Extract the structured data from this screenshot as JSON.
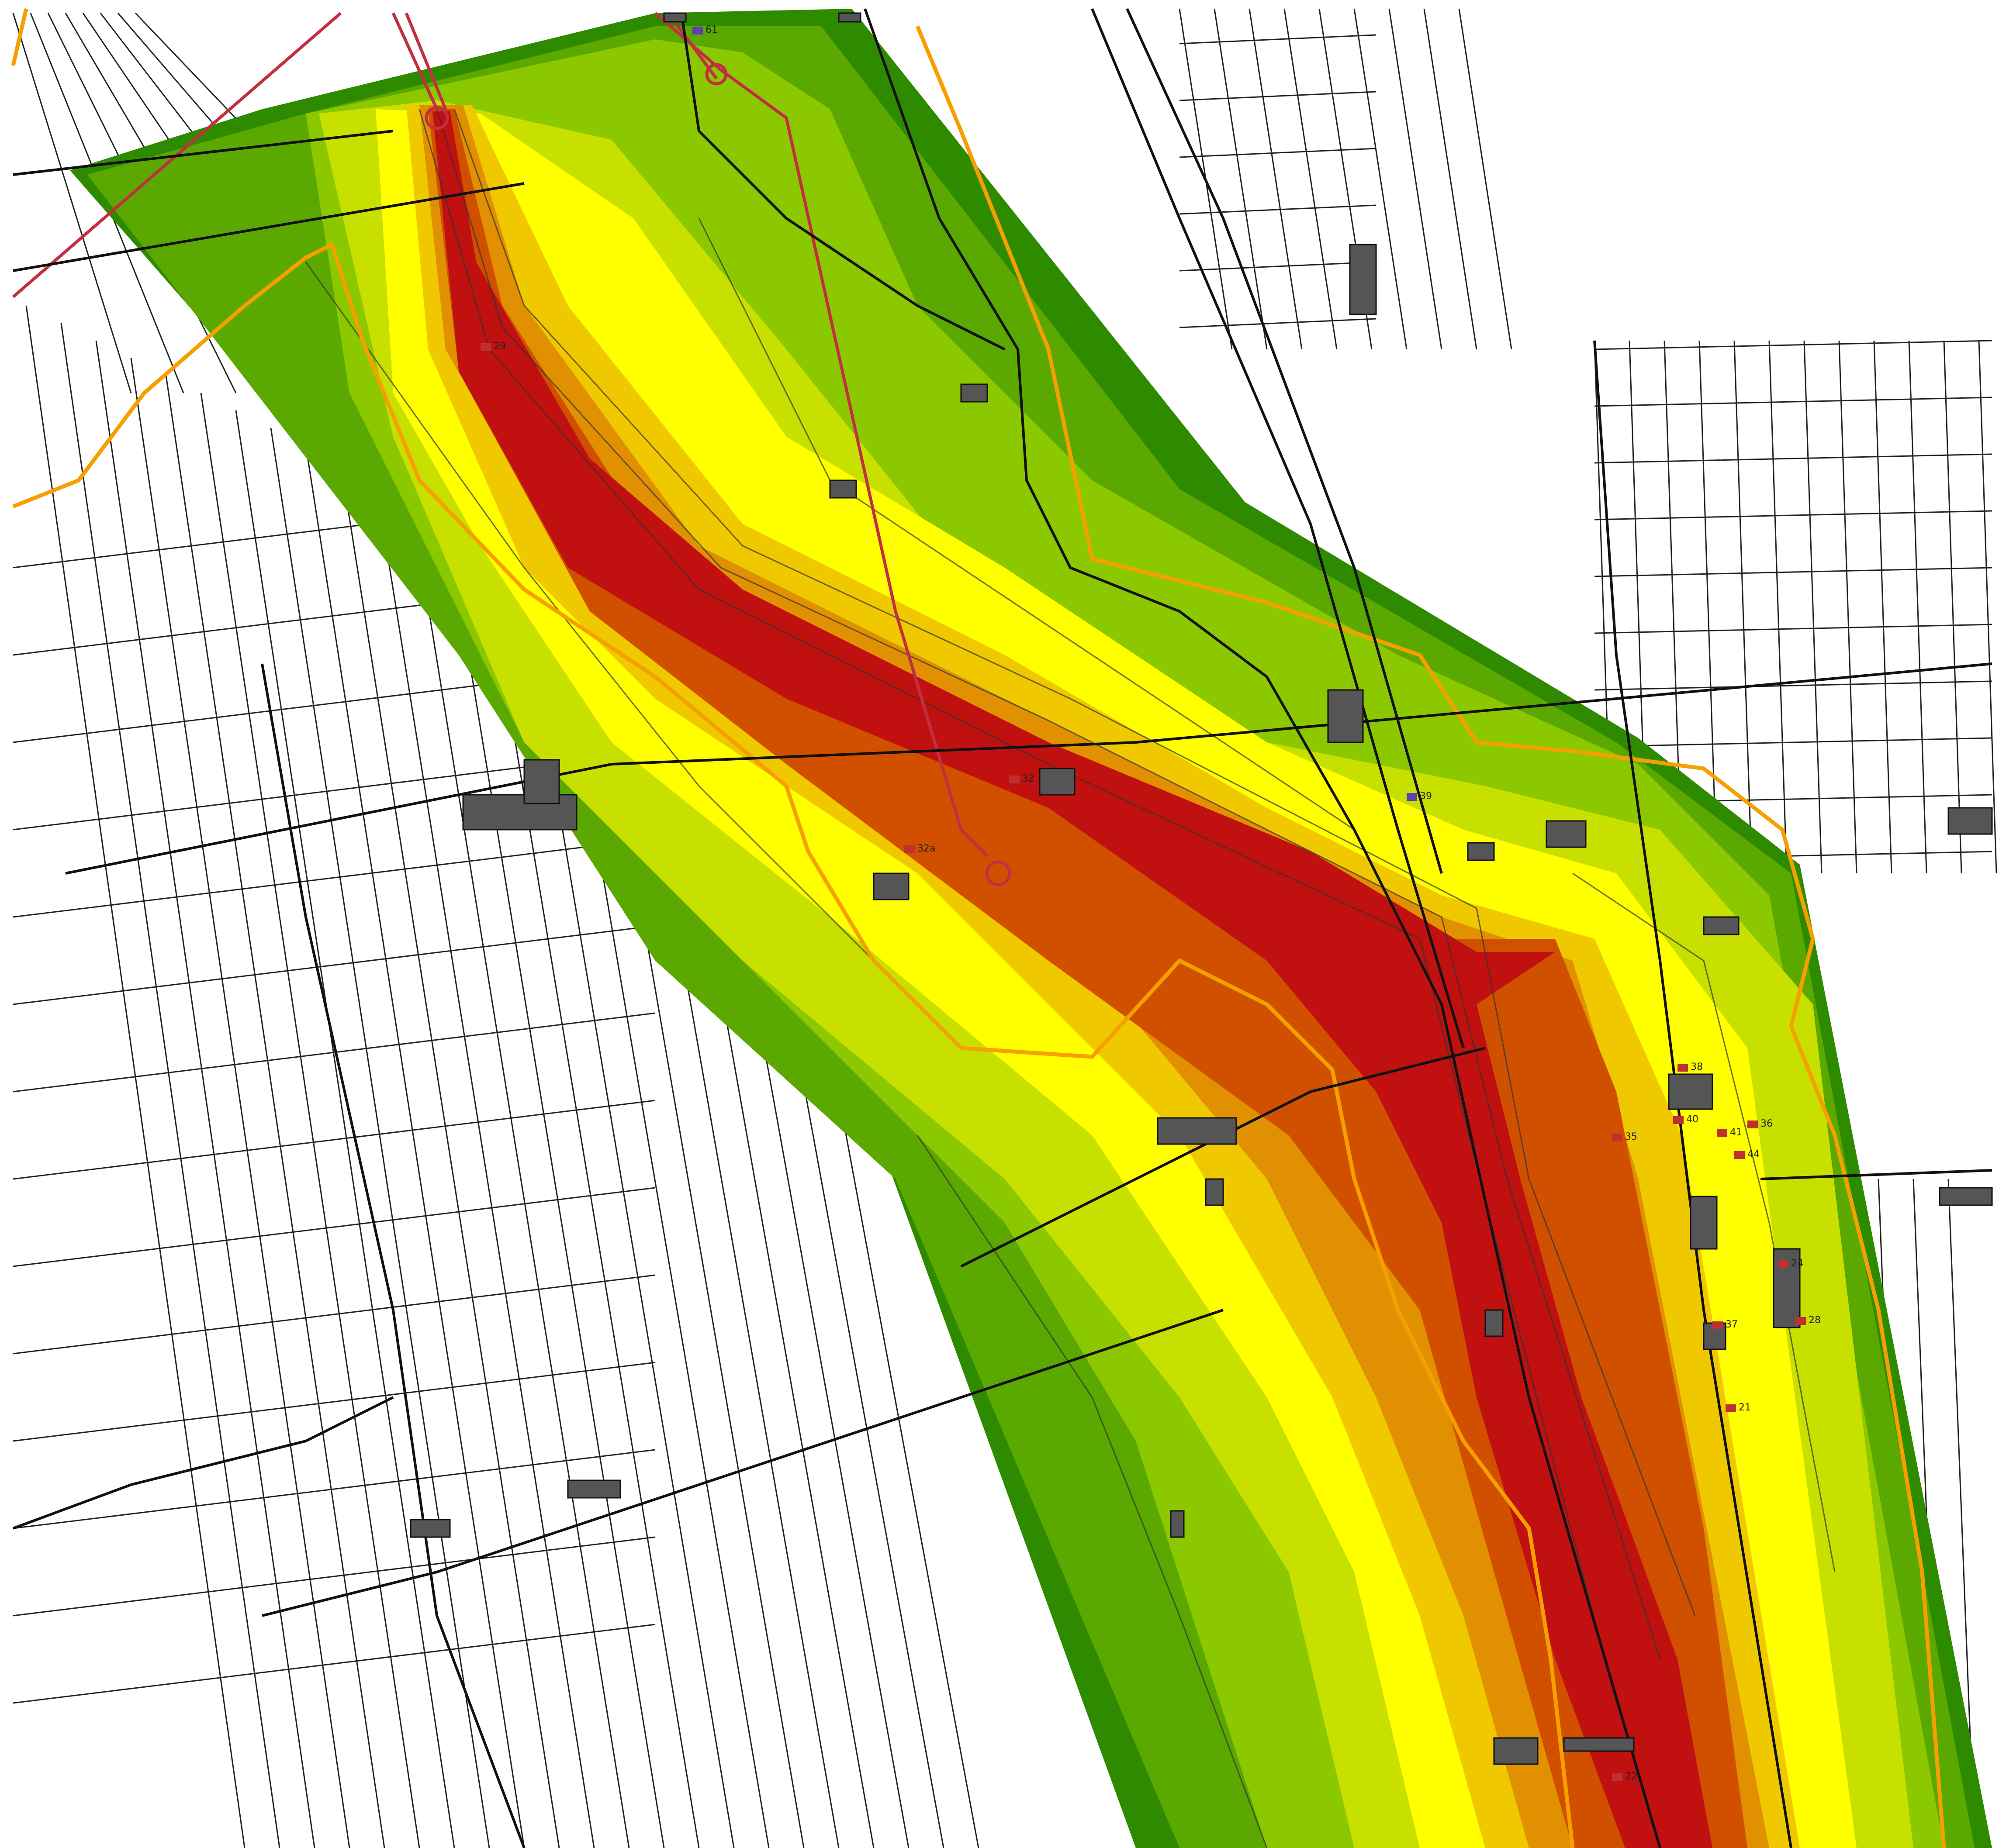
{
  "map": {
    "colors": {
      "zone_1": "#2e8b00",
      "zone_2": "#5aa800",
      "zone_3": "#8cc800",
      "zone_4": "#c8e000",
      "zone_5": "#ffff00",
      "zone_6": "#f0c800",
      "zone_7": "#e09000",
      "zone_8": "#d05000",
      "zone_9": "#c01010",
      "boundary": "#f5a000",
      "pipeline": "#c03040",
      "parcel_line": "#222222",
      "building": "#222222",
      "receptor": "#c03030",
      "receptor_alt": "#6040b0"
    },
    "labels": {
      "r61": "61",
      "r29": "29",
      "r32": "32",
      "r33": "32a",
      "r39": "39",
      "r35": "35",
      "r36": "36",
      "r38": "38",
      "r40": "40",
      "r41": "41",
      "r44": "44",
      "r24": "24",
      "r37": "37",
      "r21": "21",
      "r22": "22",
      "r28": "28"
    }
  }
}
